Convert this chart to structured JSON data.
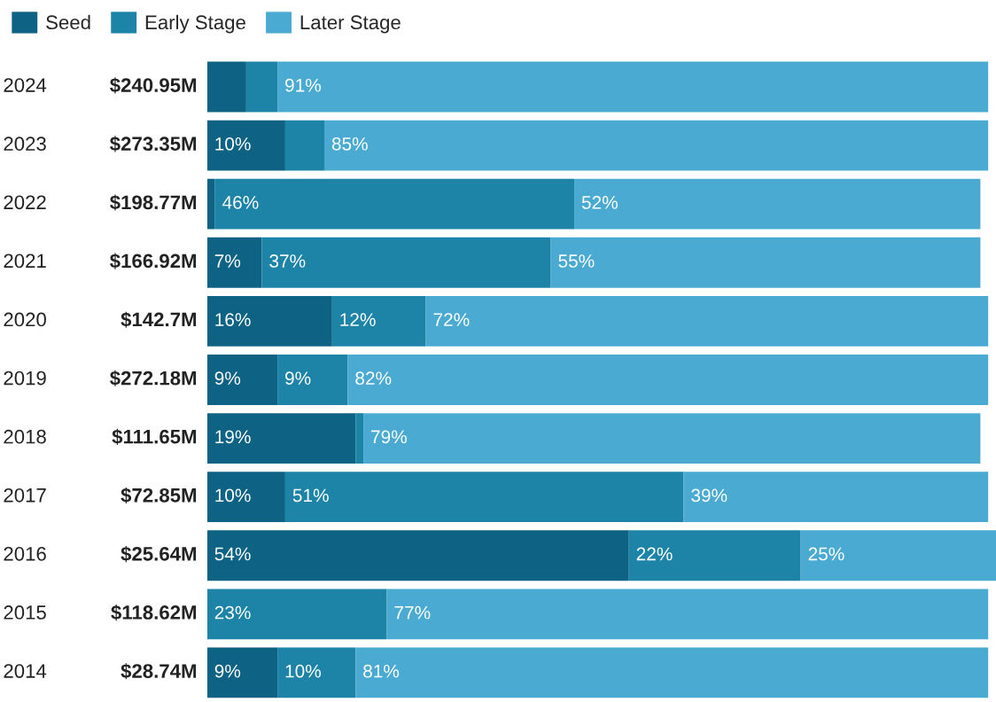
{
  "chart_data": {
    "type": "bar",
    "orientation": "horizontal",
    "stacked": true,
    "categories": [
      "2024",
      "2023",
      "2022",
      "2021",
      "2020",
      "2019",
      "2018",
      "2017",
      "2016",
      "2015",
      "2014"
    ],
    "annotations": [
      "$240.95M",
      "$273.35M",
      "$198.77M",
      "$166.92M",
      "$142.7M",
      "$272.18M",
      "$111.65M",
      "$72.85M",
      "$25.64M",
      "$118.62M",
      "$28.74M"
    ],
    "series": [
      {
        "name": "Seed",
        "color": "#0e6283",
        "values": [
          5,
          10,
          1,
          7,
          16,
          9,
          19,
          10,
          54,
          0,
          9
        ],
        "value_labels": [
          null,
          "10%",
          null,
          "7%",
          "16%",
          "9%",
          "19%",
          "10%",
          "54%",
          null,
          "9%"
        ]
      },
      {
        "name": "Early Stage",
        "color": "#1d84a8",
        "values": [
          4,
          5,
          46,
          37,
          12,
          9,
          1,
          51,
          22,
          23,
          10
        ],
        "value_labels": [
          null,
          null,
          "46%",
          "37%",
          "12%",
          "9%",
          null,
          "51%",
          "22%",
          "23%",
          "10%"
        ]
      },
      {
        "name": "Later Stage",
        "color": "#4aaad2",
        "values": [
          91,
          85,
          52,
          55,
          72,
          82,
          79,
          39,
          25,
          77,
          81
        ],
        "value_labels": [
          "91%",
          "85%",
          "52%",
          "55%",
          "72%",
          "82%",
          "79%",
          "39%",
          "25%",
          "77%",
          "81%"
        ]
      }
    ],
    "xlim": [
      0,
      101
    ],
    "tick_labels": false,
    "grid": false,
    "legend": "top left"
  }
}
